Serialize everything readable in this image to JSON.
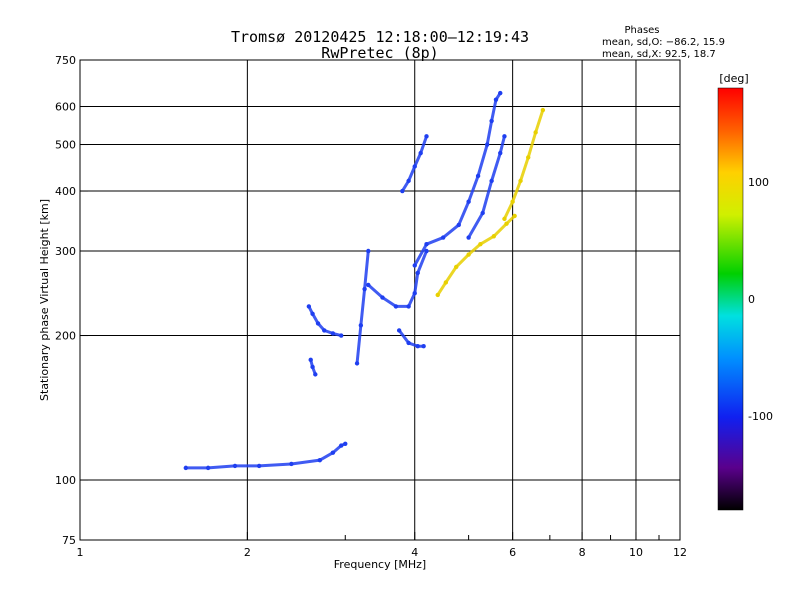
{
  "chart_data": {
    "type": "scatter",
    "title": "Tromsø 20120425 12:18:00–12:19:43",
    "subtitle": "RwPretec (8p)",
    "stats": {
      "heading": "Phases",
      "line1": "mean, sd,O: −86.2, 15.9",
      "line2": "mean, sd,X:  92.5, 18.7"
    },
    "xlabel": "Frequency [MHz]",
    "ylabel": "Stationary phase Virtual Height [km]",
    "x_scale": "log",
    "y_scale": "log",
    "xlim": [
      1,
      12
    ],
    "ylim": [
      75,
      750
    ],
    "x_ticks": [
      {
        "value": 1,
        "label": "1"
      },
      {
        "value": 2,
        "label": "2"
      },
      {
        "value": 4,
        "label": "4"
      },
      {
        "value": 6,
        "label": "6"
      },
      {
        "value": 8,
        "label": "8"
      },
      {
        "value": 10,
        "label": "10"
      },
      {
        "value": 12,
        "label": "12"
      }
    ],
    "x_minor_ticks": [
      3,
      5,
      7,
      9,
      11
    ],
    "x_gridlines": [
      2,
      4,
      6,
      8,
      10
    ],
    "y_ticks": [
      {
        "value": 75,
        "label": "75"
      },
      {
        "value": 100,
        "label": "100"
      },
      {
        "value": 200,
        "label": "200"
      },
      {
        "value": 300,
        "label": "300"
      },
      {
        "value": 400,
        "label": "400"
      },
      {
        "value": 500,
        "label": "500"
      },
      {
        "value": 600,
        "label": "600"
      },
      {
        "value": 750,
        "label": "750"
      }
    ],
    "y_gridlines": [
      100,
      200,
      300,
      400,
      500,
      600
    ],
    "grid": true,
    "colorbar": {
      "label": "[deg]",
      "range": [
        -180,
        180
      ],
      "tick_labels": [
        {
          "value": 100,
          "label": "100"
        },
        {
          "value": 0,
          "label": "0"
        },
        {
          "value": -100,
          "label": "-100"
        }
      ]
    },
    "series": [
      {
        "mode": "O",
        "mean_phase_deg": -86.2,
        "sd_phase_deg": 15.9,
        "color": "#1f3ff0",
        "traces": [
          {
            "points": [
              [
                1.55,
                106
              ],
              [
                1.7,
                106
              ],
              [
                1.9,
                107
              ],
              [
                2.1,
                107
              ],
              [
                2.4,
                108
              ],
              [
                2.7,
                110
              ],
              [
                2.85,
                114
              ],
              [
                2.95,
                118
              ],
              [
                3.0,
                119
              ]
            ]
          },
          {
            "points": [
              [
                2.58,
                230
              ],
              [
                2.62,
                222
              ],
              [
                2.68,
                212
              ],
              [
                2.75,
                205
              ],
              [
                2.85,
                202
              ],
              [
                2.95,
                200
              ]
            ]
          },
          {
            "points": [
              [
                2.6,
                178
              ],
              [
                2.62,
                172
              ],
              [
                2.65,
                166
              ]
            ]
          },
          {
            "points": [
              [
                3.15,
                175
              ],
              [
                3.2,
                210
              ],
              [
                3.25,
                250
              ],
              [
                3.3,
                300
              ]
            ]
          },
          {
            "points": [
              [
                3.3,
                255
              ],
              [
                3.5,
                240
              ],
              [
                3.7,
                230
              ],
              [
                3.9,
                230
              ],
              [
                4.0,
                245
              ],
              [
                4.05,
                270
              ],
              [
                4.2,
                300
              ]
            ]
          },
          {
            "points": [
              [
                3.75,
                205
              ],
              [
                3.9,
                193
              ],
              [
                4.05,
                190
              ],
              [
                4.15,
                190
              ]
            ]
          },
          {
            "points": [
              [
                3.8,
                400
              ],
              [
                3.9,
                420
              ],
              [
                4.0,
                450
              ],
              [
                4.1,
                480
              ],
              [
                4.2,
                520
              ]
            ]
          },
          {
            "points": [
              [
                4.0,
                280
              ],
              [
                4.2,
                310
              ],
              [
                4.5,
                320
              ],
              [
                4.8,
                340
              ],
              [
                5.0,
                380
              ],
              [
                5.2,
                430
              ],
              [
                5.4,
                500
              ],
              [
                5.5,
                560
              ],
              [
                5.6,
                620
              ],
              [
                5.7,
                640
              ]
            ]
          },
          {
            "points": [
              [
                5.0,
                320
              ],
              [
                5.3,
                360
              ],
              [
                5.5,
                420
              ],
              [
                5.7,
                480
              ],
              [
                5.8,
                520
              ]
            ]
          }
        ]
      },
      {
        "mode": "X",
        "mean_phase_deg": 92.5,
        "sd_phase_deg": 18.7,
        "color": "#e8d000",
        "traces": [
          {
            "points": [
              [
                4.4,
                243
              ],
              [
                4.55,
                258
              ],
              [
                4.75,
                278
              ],
              [
                5.0,
                295
              ],
              [
                5.25,
                310
              ],
              [
                5.55,
                322
              ],
              [
                5.85,
                342
              ],
              [
                6.05,
                355
              ]
            ]
          },
          {
            "points": [
              [
                5.8,
                350
              ],
              [
                6.0,
                380
              ],
              [
                6.2,
                420
              ],
              [
                6.4,
                470
              ],
              [
                6.6,
                530
              ],
              [
                6.8,
                590
              ]
            ]
          }
        ]
      }
    ]
  }
}
